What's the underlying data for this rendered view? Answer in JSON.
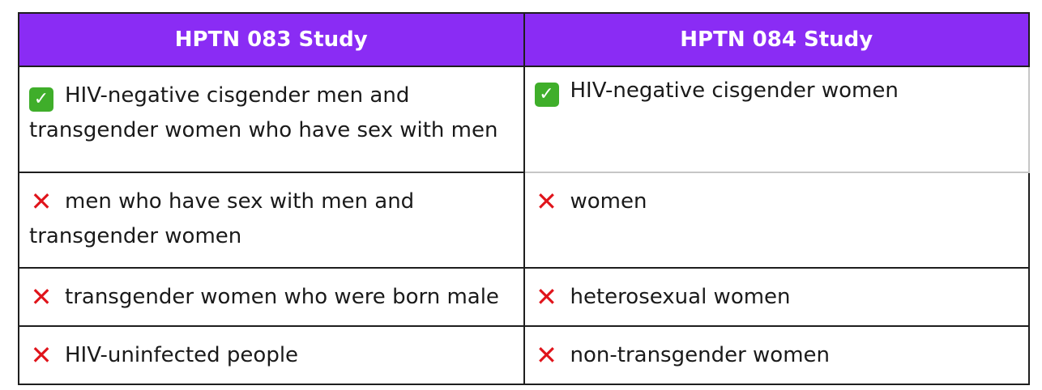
{
  "headers": [
    "HPTN 083 Study",
    "HPTN 084 Study"
  ],
  "icons": {
    "check": "check-mark-icon",
    "cross": "cross-mark-icon",
    "check_glyph": "✓",
    "cross_glyph": "✕",
    "check_color": "#3fae2a",
    "cross_color": "#e0141b"
  },
  "rows": [
    {
      "left": {
        "mark": "check",
        "text": "HIV-negative cisgender men and transgender women who have sex with men"
      },
      "right": {
        "mark": "check",
        "text": "HIV-negative cisgender women"
      }
    },
    {
      "left": {
        "mark": "cross",
        "text": "men who have sex with men and transgender women"
      },
      "right": {
        "mark": "cross",
        "text": "women"
      }
    },
    {
      "left": {
        "mark": "cross",
        "text": "transgender women who were born male"
      },
      "right": {
        "mark": "cross",
        "text": "heterosexual women"
      }
    },
    {
      "left": {
        "mark": "cross",
        "text": "HIV-uninfected people"
      },
      "right": {
        "mark": "cross",
        "text": "non-transgender women"
      }
    }
  ],
  "header_color": "#8a2cf4"
}
